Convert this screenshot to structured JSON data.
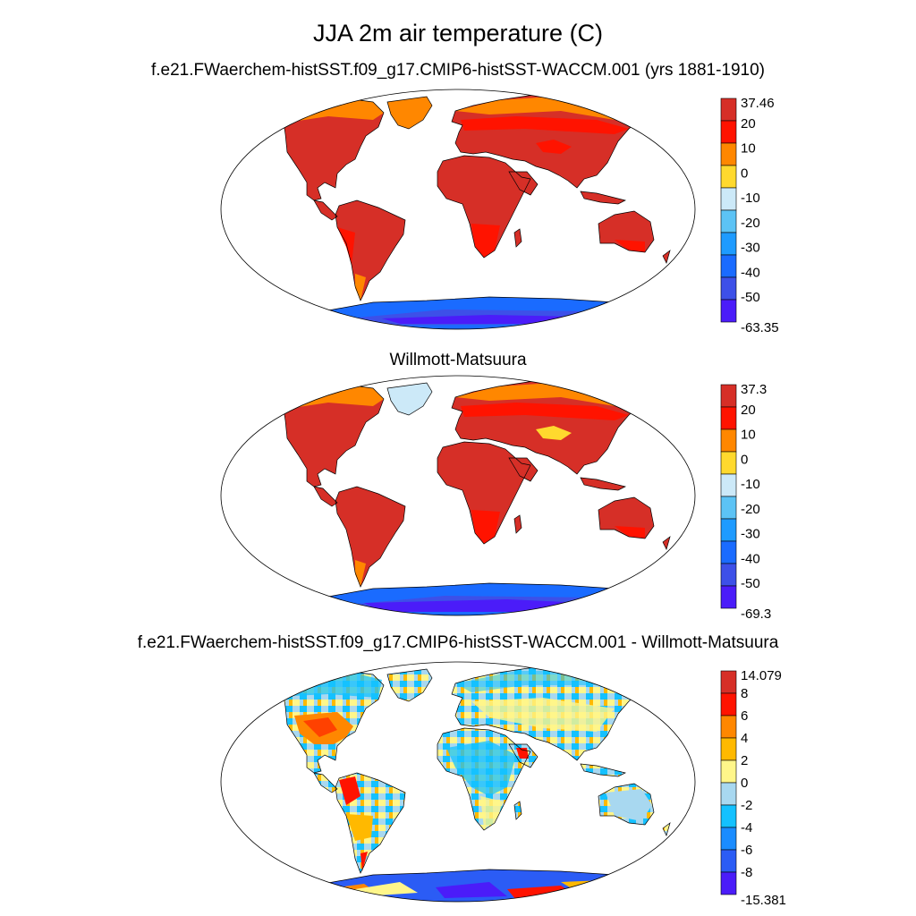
{
  "main_title": "JJA 2m air temperature (C)",
  "panels": [
    {
      "title": "f.e21.FWaerchem-histSST.f09_g17.CMIP6-histSST-WACCM.001 (yrs 1881-1910)",
      "colorbar": {
        "labels": [
          "37.46",
          "20",
          "10",
          "0",
          "-10",
          "-20",
          "-30",
          "-40",
          "-50",
          "-63.35"
        ],
        "colors": [
          "#d62f27",
          "#ff1300",
          "#ff8700",
          "#ffd92e",
          "#cce9f8",
          "#5cc3f5",
          "#1e9bff",
          "#1a6bff",
          "#3d50e8",
          "#4b1cf9"
        ]
      }
    },
    {
      "title": "Willmott-Matsuura",
      "colorbar": {
        "labels": [
          "37.3",
          "20",
          "10",
          "0",
          "-10",
          "-20",
          "-30",
          "-40",
          "-50",
          "-69.3"
        ],
        "colors": [
          "#d62f27",
          "#ff1300",
          "#ff8700",
          "#ffd92e",
          "#cce9f8",
          "#5cc3f5",
          "#1e9bff",
          "#1a6bff",
          "#3d50e8",
          "#4b1cf9"
        ]
      }
    },
    {
      "title": "f.e21.FWaerchem-histSST.f09_g17.CMIP6-histSST-WACCM.001 - Willmott-Matsuura",
      "colorbar": {
        "labels": [
          "14.079",
          "8",
          "6",
          "4",
          "2",
          "0",
          "-2",
          "-4",
          "-6",
          "-8",
          "-15.381"
        ],
        "colors": [
          "#d62f27",
          "#ff1300",
          "#ff8700",
          "#ffb900",
          "#fff68a",
          "#a8d8f0",
          "#14c1ff",
          "#1a8cff",
          "#2b5cf5",
          "#4b1cf9"
        ]
      }
    }
  ]
}
